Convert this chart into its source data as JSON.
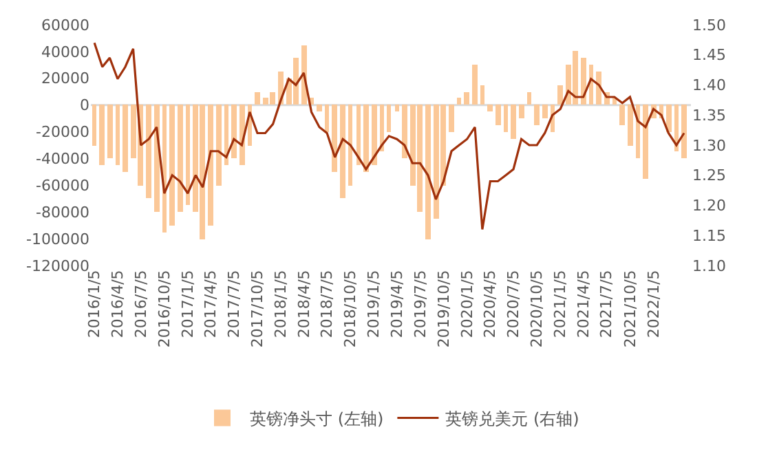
{
  "chart_data": {
    "type": "bar",
    "legend": "bottom",
    "grid": false,
    "x": [
      "2016-01-05",
      "2016-02-05",
      "2016-03-05",
      "2016-04-05",
      "2016-05-05",
      "2016-06-05",
      "2016-07-05",
      "2016-08-05",
      "2016-09-05",
      "2016-10-05",
      "2016-11-05",
      "2016-12-05",
      "2017-01-05",
      "2017-02-05",
      "2017-03-05",
      "2017-04-05",
      "2017-05-05",
      "2017-06-05",
      "2017-07-05",
      "2017-08-05",
      "2017-09-05",
      "2017-10-05",
      "2017-11-05",
      "2017-12-05",
      "2018-01-05",
      "2018-02-05",
      "2018-03-05",
      "2018-04-05",
      "2018-05-05",
      "2018-06-05",
      "2018-07-05",
      "2018-08-05",
      "2018-09-05",
      "2018-10-05",
      "2018-11-05",
      "2018-12-05",
      "2019-01-05",
      "2019-02-05",
      "2019-03-05",
      "2019-04-05",
      "2019-05-05",
      "2019-06-05",
      "2019-07-05",
      "2019-08-05",
      "2019-09-05",
      "2019-10-05",
      "2019-11-05",
      "2019-12-05",
      "2020-01-05",
      "2020-02-05",
      "2020-03-05",
      "2020-04-05",
      "2020-05-05",
      "2020-06-05",
      "2020-07-05",
      "2020-08-05",
      "2020-09-05",
      "2020-10-05",
      "2020-11-05",
      "2020-12-05",
      "2021-01-05",
      "2021-02-05",
      "2021-03-05",
      "2021-04-05",
      "2021-05-05",
      "2021-06-05",
      "2021-07-05",
      "2021-08-05",
      "2021-09-05",
      "2021-10-05",
      "2021-11-05",
      "2021-12-05",
      "2022-01-05",
      "2022-02-05",
      "2022-03-05",
      "2022-04-05",
      "2022-05-05"
    ],
    "series": [
      {
        "name": "英镑净头寸 (左轴)",
        "color": "#fbc898",
        "values": [
          -30000,
          -45000,
          -40000,
          -45000,
          -50000,
          -40000,
          -60000,
          -70000,
          -80000,
          -95000,
          -90000,
          -80000,
          -75000,
          -80000,
          -100000,
          -90000,
          -60000,
          -45000,
          -40000,
          -45000,
          -30000,
          10000,
          5000,
          10000,
          25000,
          20000,
          35000,
          45000,
          5000,
          -5000,
          -20000,
          -50000,
          -70000,
          -60000,
          -45000,
          -50000,
          -45000,
          -35000,
          -20000,
          -5000,
          -40000,
          -60000,
          -80000,
          -100000,
          -85000,
          -60000,
          -20000,
          5000,
          10000,
          30000,
          15000,
          -5000,
          -15000,
          -20000,
          -25000,
          -10000,
          10000,
          -15000,
          -10000,
          -20000,
          15000,
          30000,
          40000,
          35000,
          30000,
          25000,
          10000,
          5000,
          -15000,
          -30000,
          -40000,
          -55000,
          -10000,
          -10000,
          -20000,
          -35000,
          -40000
        ]
      },
      {
        "name": "英镑兑美元 (右轴)",
        "type": "line",
        "axis": "y2",
        "color": "#a0310c",
        "values": [
          1.47,
          1.43,
          1.445,
          1.41,
          1.43,
          1.46,
          1.3,
          1.31,
          1.33,
          1.22,
          1.25,
          1.24,
          1.22,
          1.25,
          1.23,
          1.29,
          1.29,
          1.28,
          1.31,
          1.3,
          1.355,
          1.32,
          1.32,
          1.335,
          1.375,
          1.41,
          1.4,
          1.42,
          1.355,
          1.33,
          1.32,
          1.28,
          1.31,
          1.3,
          1.28,
          1.26,
          1.28,
          1.3,
          1.315,
          1.31,
          1.3,
          1.27,
          1.27,
          1.25,
          1.21,
          1.24,
          1.29,
          1.3,
          1.31,
          1.33,
          1.16,
          1.24,
          1.24,
          1.25,
          1.26,
          1.31,
          1.3,
          1.3,
          1.32,
          1.35,
          1.36,
          1.39,
          1.38,
          1.38,
          1.41,
          1.4,
          1.38,
          1.38,
          1.37,
          1.38,
          1.34,
          1.33,
          1.36,
          1.35,
          1.32,
          1.3,
          1.32
        ]
      }
    ],
    "ylim": [
      -120000,
      60000
    ],
    "yticks": [
      -120000,
      -100000,
      -80000,
      -60000,
      -40000,
      -20000,
      0,
      20000,
      40000,
      60000
    ],
    "y2lim": [
      1.1,
      1.5
    ],
    "y2ticks": [
      {
        "value": 1.1,
        "label": "1.10"
      },
      {
        "value": 1.15,
        "label": "1.15"
      },
      {
        "value": 1.2,
        "label": "1.20"
      },
      {
        "value": 1.25,
        "label": "1.25"
      },
      {
        "value": 1.3,
        "label": "1.30"
      },
      {
        "value": 1.35,
        "label": "1.35"
      },
      {
        "value": 1.4,
        "label": "1.40"
      },
      {
        "value": 1.45,
        "label": "1.45"
      },
      {
        "value": 1.5,
        "label": "1.50"
      }
    ],
    "xlim": [
      "2015-12-22",
      "2022-06-01"
    ],
    "xticks": [
      {
        "value": "2016-01-05",
        "label": "2016/1/5"
      },
      {
        "value": "2016-04-05",
        "label": "2016/4/5"
      },
      {
        "value": "2016-07-05",
        "label": "2016/7/5"
      },
      {
        "value": "2016-10-05",
        "label": "2016/10/5"
      },
      {
        "value": "2017-01-05",
        "label": "2017/1/5"
      },
      {
        "value": "2017-04-05",
        "label": "2017/4/5"
      },
      {
        "value": "2017-07-05",
        "label": "2017/7/5"
      },
      {
        "value": "2017-10-05",
        "label": "2017/10/5"
      },
      {
        "value": "2018-01-05",
        "label": "2018/1/5"
      },
      {
        "value": "2018-04-05",
        "label": "2018/4/5"
      },
      {
        "value": "2018-07-05",
        "label": "2018/7/5"
      },
      {
        "value": "2018-10-05",
        "label": "2018/10/5"
      },
      {
        "value": "2019-01-05",
        "label": "2019/1/5"
      },
      {
        "value": "2019-04-05",
        "label": "2019/4/5"
      },
      {
        "value": "2019-07-05",
        "label": "2019/7/5"
      },
      {
        "value": "2019-10-05",
        "label": "2019/10/5"
      },
      {
        "value": "2020-01-05",
        "label": "2020/1/5"
      },
      {
        "value": "2020-04-05",
        "label": "2020/4/5"
      },
      {
        "value": "2020-07-05",
        "label": "2020/7/5"
      },
      {
        "value": "2020-10-05",
        "label": "2020/10/5"
      },
      {
        "value": "2021-01-05",
        "label": "2021/1/5"
      },
      {
        "value": "2021-04-05",
        "label": "2021/4/5"
      },
      {
        "value": "2021-07-05",
        "label": "2021/7/5"
      },
      {
        "value": "2021-10-05",
        "label": "2021/10/5"
      },
      {
        "value": "2022-01-05",
        "label": "2022/1/5"
      }
    ],
    "ref_lines": [
      {
        "axis": "y",
        "value": 0,
        "color": "#d9d9d9"
      }
    ]
  }
}
